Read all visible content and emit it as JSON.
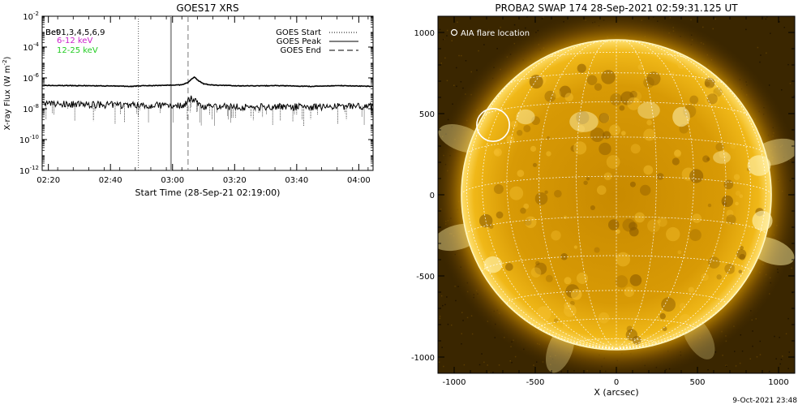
{
  "chart_data": [
    {
      "type": "line",
      "title": "GOES17 XRS",
      "xlabel": "Start Time (28-Sep-21 02:19:00)",
      "ylabel": "X-ray Flux (W m",
      "ylabel_sup": "-2",
      "ylabel_close": ")",
      "x_ticks": [
        "02:20",
        "02:40",
        "03:00",
        "03:20",
        "03:40",
        "04:00"
      ],
      "x_tick_minutes": [
        141,
        161,
        181,
        201,
        221,
        241
      ],
      "xlim_minutes": [
        139,
        245.6
      ],
      "y_scale": "log",
      "ylim_exp": [
        -12,
        -2
      ],
      "y_ticks": [
        {
          "base": "10",
          "exp": "-2"
        },
        {
          "base": "10",
          "exp": "-4"
        },
        {
          "base": "10",
          "exp": "-6"
        },
        {
          "base": "10",
          "exp": "-8"
        },
        {
          "base": "10",
          "exp": "-10"
        },
        {
          "base": "10",
          "exp": "-12"
        }
      ],
      "y_tick_exps": [
        -2,
        -4,
        -6,
        -8,
        -10,
        -12
      ],
      "channel_text": "Be91,3,4,5,6,9",
      "channel_text_overlap": "Bet",
      "energy_legend": [
        {
          "label": "6-12 keV",
          "color": "#cc22cc"
        },
        {
          "label": "12-25 keV",
          "color": "#22cc22"
        }
      ],
      "event_legend": [
        {
          "label": "GOES Start",
          "style": "dotted"
        },
        {
          "label": "GOES Peak",
          "style": "solid"
        },
        {
          "label": "GOES End",
          "style": "dashed"
        }
      ],
      "events_minutes": {
        "start": 170,
        "peak": 180.5,
        "end": 186
      },
      "series": [
        {
          "band": "long",
          "time_min": [
            139,
            150,
            160,
            168,
            172,
            176,
            180,
            184,
            186,
            187,
            188,
            189.5,
            191,
            193,
            196,
            200,
            205,
            215,
            225,
            235,
            245.6
          ],
          "log_flux": [
            -6.49,
            -6.5,
            -6.52,
            -6.55,
            -6.5,
            -6.5,
            -6.47,
            -6.45,
            -6.3,
            -6.1,
            -5.95,
            -6.2,
            -6.38,
            -6.45,
            -6.48,
            -6.5,
            -6.52,
            -6.5,
            -6.55,
            -6.5,
            -6.55
          ]
        },
        {
          "band": "short",
          "time_min": [
            139,
            150,
            160,
            170,
            176,
            180,
            184,
            186,
            187,
            188,
            190,
            192,
            196,
            205,
            215,
            225,
            235,
            245.6
          ],
          "log_flux": [
            -7.7,
            -7.72,
            -7.75,
            -7.75,
            -7.78,
            -7.75,
            -7.8,
            -7.55,
            -7.3,
            -7.5,
            -7.8,
            -7.9,
            -7.85,
            -7.9,
            -7.85,
            -7.9,
            -7.85,
            -7.8
          ]
        }
      ]
    },
    {
      "type": "scatter",
      "title": "PROBA2 SWAP 174 28-Sep-2021 02:59:31.125 UT",
      "xlabel": "X (arcsec)",
      "x_ticks": [
        "-1000",
        "-500",
        "0",
        "500",
        "1000"
      ],
      "y_ticks": [
        "1000",
        "500",
        "0",
        "-500",
        "-1000"
      ],
      "x_tick_values": [
        -1000,
        -500,
        0,
        500,
        1000
      ],
      "y_tick_values": [
        1000,
        500,
        0,
        -500,
        -1000
      ],
      "xlim": [
        -1100,
        1100
      ],
      "ylim": [
        -1100,
        1100
      ],
      "solar_radius_arcsec": 955,
      "legend_label": "AIA flare location",
      "flare_location": {
        "x": -760,
        "y": 430,
        "radius_arcsec": 65
      },
      "image_colors": {
        "dark": "#2a1a00",
        "mid": "#c88a00",
        "bright": "#ffd84a",
        "limb": "#fff2a0"
      }
    }
  ],
  "footer": {
    "timestamp": "9-Oct-2021 23:48"
  }
}
